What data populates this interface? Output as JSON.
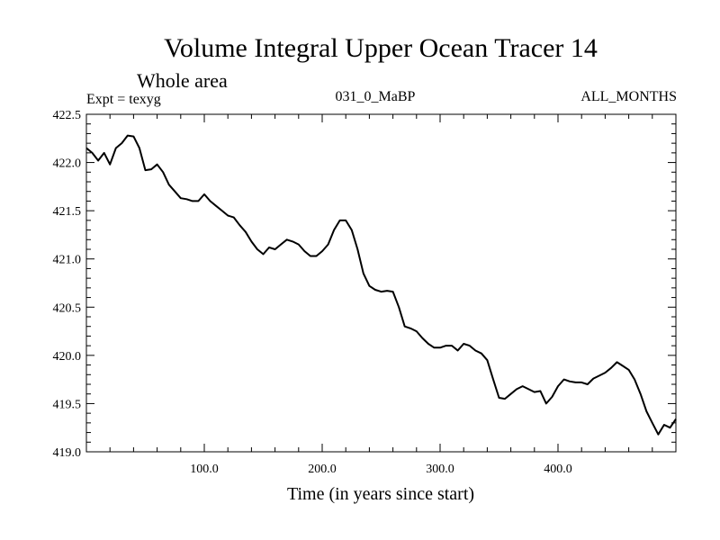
{
  "chart_data": {
    "type": "line",
    "title": "Volume Integral Upper Ocean Tracer 14",
    "subtitle": "Whole area",
    "annotations": {
      "left": "Expt = texyg",
      "center": "031_0_MaBP",
      "right": "ALL_MONTHS"
    },
    "xlabel": "Time (in years since start)",
    "ylabel": "",
    "xlim": [
      0,
      500
    ],
    "ylim": [
      419.0,
      422.5
    ],
    "x_ticks": [
      100,
      200,
      300,
      400
    ],
    "x_tick_labels": [
      "100.0",
      "200.0",
      "300.0",
      "400.0"
    ],
    "y_ticks": [
      419.0,
      419.5,
      420.0,
      420.5,
      421.0,
      421.5,
      422.0,
      422.5
    ],
    "y_tick_labels": [
      "419.0",
      "419.5",
      "420.0",
      "420.5",
      "421.0",
      "421.5",
      "422.0",
      "422.5"
    ],
    "grid": false,
    "series": [
      {
        "color": "#000000",
        "x": [
          0,
          5,
          10,
          15,
          20,
          25,
          30,
          35,
          40,
          45,
          50,
          55,
          60,
          65,
          70,
          75,
          80,
          85,
          90,
          95,
          100,
          105,
          110,
          115,
          120,
          125,
          130,
          135,
          140,
          145,
          150,
          155,
          160,
          165,
          170,
          175,
          180,
          185,
          190,
          195,
          200,
          205,
          210,
          215,
          220,
          225,
          230,
          235,
          240,
          245,
          250,
          255,
          260,
          265,
          270,
          275,
          280,
          285,
          290,
          295,
          300,
          305,
          310,
          315,
          320,
          325,
          330,
          335,
          340,
          345,
          350,
          355,
          360,
          365,
          370,
          375,
          380,
          385,
          390,
          395,
          400,
          405,
          410,
          415,
          420,
          425,
          430,
          435,
          440,
          445,
          450,
          455,
          460,
          465,
          470,
          475,
          480,
          485,
          490,
          495,
          500
        ],
        "y": [
          422.15,
          422.1,
          422.02,
          422.1,
          421.98,
          422.15,
          422.2,
          422.28,
          422.27,
          422.15,
          421.92,
          421.93,
          421.98,
          421.9,
          421.77,
          421.7,
          421.63,
          421.62,
          421.6,
          421.6,
          421.67,
          421.6,
          421.55,
          421.5,
          421.45,
          421.43,
          421.35,
          421.28,
          421.18,
          421.1,
          421.05,
          421.12,
          421.1,
          421.15,
          421.2,
          421.18,
          421.15,
          421.08,
          421.03,
          421.03,
          421.08,
          421.15,
          421.3,
          421.4,
          421.4,
          421.3,
          421.1,
          420.85,
          420.72,
          420.68,
          420.66,
          420.67,
          420.66,
          420.5,
          420.3,
          420.28,
          420.25,
          420.18,
          420.12,
          420.08,
          420.08,
          420.1,
          420.1,
          420.05,
          420.12,
          420.1,
          420.05,
          420.02,
          419.95,
          419.75,
          419.56,
          419.55,
          419.6,
          419.65,
          419.68,
          419.65,
          419.62,
          419.63,
          419.5,
          419.57,
          419.68,
          419.75,
          419.73,
          419.72,
          419.72,
          419.7,
          419.76,
          419.79,
          419.82,
          419.87,
          419.93,
          419.89,
          419.85,
          419.75,
          419.6,
          419.42,
          419.3,
          419.18,
          419.28,
          419.25,
          419.34
        ]
      }
    ]
  }
}
